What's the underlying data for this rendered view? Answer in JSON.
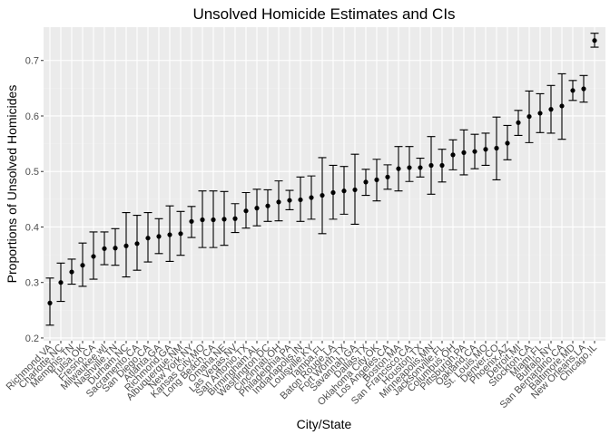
{
  "chart_data": {
    "type": "scatter",
    "title": "Unsolved Homicide Estimates and CIs",
    "xlabel": "City/State",
    "ylabel": "Proportions of Unsolved Homicides",
    "ylim": [
      0.195,
      0.76
    ],
    "y_ticks": [
      0.2,
      0.3,
      0.4,
      0.5,
      0.6,
      0.7
    ],
    "y_tick_labels": [
      "0.2",
      "0.3",
      "0.4",
      "0.5",
      "0.6",
      "0.7"
    ],
    "grid": true,
    "background": "#EBEBEB",
    "legend": "none",
    "error_bars": true,
    "categories": [
      "Richmond,VA",
      "Charlotte,NC",
      "Memphis,TN",
      "Tulsa,OK",
      "Fresno,CA",
      "Milwaukee,wI",
      "Nashville,TN",
      "Durham,NC",
      "Sacramento,CA",
      "San Diego,CA",
      "Atlanta,GA",
      "Richmond,GA",
      "Albuquerque,NM",
      "New York,NY",
      "Kansas City,MO",
      "Long Beach,CA",
      "Omaha,NE",
      "Las Vegas,NV",
      "San Antonio,TX",
      "Birmingham,AL",
      "Washington,DC",
      "Cincinnati,OH",
      "Philadelphia,PA",
      "Indianapolis,IN",
      "Louisville,KY",
      "Tampa,FL",
      "Baton Rouge,LA",
      "Fort Worth,TX",
      "Savannah,GA",
      "Dallas,TX",
      "Oklahoma City,OK",
      "Los Angeles,CA",
      "Boston,MA",
      "San Francisco,CA",
      "Houston,TX",
      "Minneapolis,MN",
      "Jacksonville,FL",
      "Columbus,OH",
      "Pittsburgh,PA",
      "Oakland,CA",
      "St. Louis,MO",
      "Denver,CO",
      "Phoenix,AZ",
      "Detroit,MI",
      "Stockton,CA",
      "Miami,FL",
      "Buffalo,NY",
      "San Bernardino,CA",
      "Baltimore,MD",
      "New Orleans,LA",
      "Chicago,IL"
    ],
    "categories_visible": [
      "Richmond,VA",
      "Charlotte,NC",
      "Memphis,TN",
      "Tulsa,OK",
      "Fresno,CA",
      "Milwaukee,wI",
      "Nashville,TN",
      "Durham,NC",
      "Sacramento,CA",
      "San Diego,CA",
      "Atlanta,GA",
      "Richmond,GA",
      "Albuquerque,NM",
      "New York,NY",
      "Kansas City,MO",
      "Long Beach,CA",
      "Omaha,NE",
      "Las Vegas,NV",
      "San Antonio,TX",
      "Birmingham,AL",
      "Washington,DC",
      "Cincinnati,OH",
      "Philadelphia,PA",
      "Indianapolis,IN",
      "Louisville,KY",
      "Tampa,FL",
      "Baton Rouge,LA",
      "Fort Worth,TX",
      "Savannah,GA",
      "Dallas,TX",
      "Oklahoma City,OK",
      "Los Angeles,CA",
      "Boston,MA",
      "San Francisco,CA",
      "Houston,TX",
      "Minneapolis,MN",
      "Jacksonville,FL",
      "Columbus,OH",
      "Pittsburgh,PA",
      "Oakland,CA",
      "St. Louis,MO",
      "Denver,CO",
      "Phoenix,AZ",
      "Detroit,MI",
      "Stockton,CA",
      "Miami,FL",
      "Buffalo,NY",
      "San Bernardino,CA",
      "Baltimore,MD",
      "New Orleans,LA",
      "Chicago,IL"
    ],
    "estimate": [
      0.263,
      0.3,
      0.319,
      0.331,
      0.347,
      0.361,
      0.362,
      0.366,
      0.37,
      0.38,
      0.383,
      0.386,
      0.388,
      0.41,
      0.413,
      0.413,
      0.414,
      0.415,
      0.429,
      0.434,
      0.438,
      0.445,
      0.448,
      0.449,
      0.453,
      0.457,
      0.462,
      0.465,
      0.467,
      0.481,
      0.485,
      0.49,
      0.505,
      0.507,
      0.507,
      0.511,
      0.511,
      0.53,
      0.534,
      0.536,
      0.54,
      0.542,
      0.551,
      0.588,
      0.599,
      0.605,
      0.612,
      0.618,
      0.646,
      0.649,
      0.736
    ],
    "conf_low": [
      0.223,
      0.266,
      0.297,
      0.293,
      0.306,
      0.332,
      0.331,
      0.31,
      0.322,
      0.337,
      0.352,
      0.338,
      0.349,
      0.381,
      0.363,
      0.363,
      0.367,
      0.39,
      0.398,
      0.402,
      0.41,
      0.411,
      0.431,
      0.41,
      0.414,
      0.388,
      0.414,
      0.423,
      0.405,
      0.457,
      0.447,
      0.468,
      0.465,
      0.482,
      0.49,
      0.459,
      0.481,
      0.503,
      0.494,
      0.505,
      0.511,
      0.485,
      0.521,
      0.565,
      0.552,
      0.57,
      0.569,
      0.558,
      0.628,
      0.625,
      0.724
    ],
    "conf_high": [
      0.308,
      0.335,
      0.342,
      0.371,
      0.391,
      0.391,
      0.397,
      0.426,
      0.421,
      0.426,
      0.415,
      0.438,
      0.428,
      0.437,
      0.465,
      0.465,
      0.464,
      0.442,
      0.462,
      0.468,
      0.467,
      0.483,
      0.466,
      0.49,
      0.492,
      0.525,
      0.511,
      0.509,
      0.531,
      0.504,
      0.522,
      0.512,
      0.545,
      0.545,
      0.524,
      0.563,
      0.54,
      0.557,
      0.575,
      0.567,
      0.569,
      0.598,
      0.583,
      0.61,
      0.645,
      0.64,
      0.655,
      0.676,
      0.664,
      0.673,
      0.749
    ]
  },
  "style": {
    "panel_background": "#EBEBEB",
    "grid_color": "#FFFFFF",
    "point_color": "#000000",
    "tick_text_color": "#4D4D4D"
  }
}
